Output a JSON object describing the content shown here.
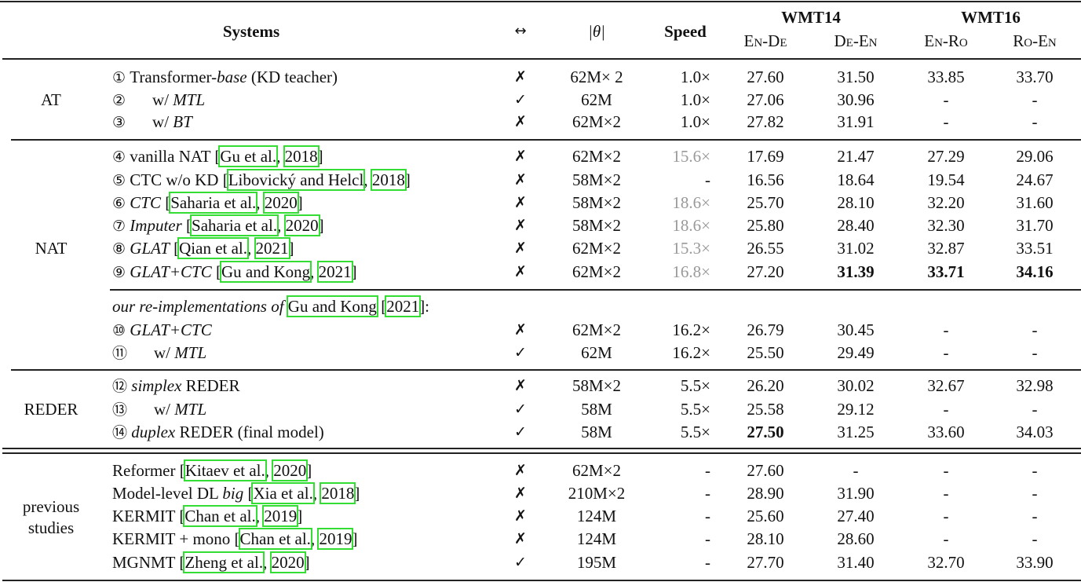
{
  "header": {
    "systems": "Systems",
    "bidirectional": "↔",
    "params": "|θ|",
    "speed": "Speed",
    "wmt14": "WMT14",
    "wmt16": "WMT16",
    "pairs": [
      "En-De",
      "De-En",
      "En-Ro",
      "Ro-En"
    ]
  },
  "groups": [
    {
      "label": [
        "AT"
      ]
    },
    {
      "label": [
        "NAT"
      ]
    },
    {
      "label": [
        "REDER"
      ]
    },
    {
      "label": [
        "previous",
        "studies"
      ]
    }
  ],
  "colors": {
    "citation_box": "#33dd33",
    "gray_speed": "#999999"
  },
  "rows": [
    {
      "num": "①",
      "indent": false,
      "name": [
        {
          "t": "Transformer-"
        },
        {
          "t": "base",
          "s": "it"
        },
        {
          "t": " (KD teacher)"
        }
      ],
      "mark": "✗",
      "params": "62M× 2",
      "speed": "1.0×",
      "scores": [
        "27.60",
        "31.50",
        "33.85",
        "33.70"
      ],
      "bold_cols": []
    },
    {
      "num": "②",
      "indent": true,
      "name": [
        {
          "t": "w/ "
        },
        {
          "t": "MTL",
          "s": "it"
        }
      ],
      "mark": "✓",
      "params": "62M",
      "speed": "1.0×",
      "scores": [
        "27.06",
        "30.96",
        "-",
        "-"
      ],
      "bold_cols": []
    },
    {
      "num": "③",
      "indent": true,
      "name": [
        {
          "t": "w/ "
        },
        {
          "t": "BT",
          "s": "it"
        }
      ],
      "mark": "✗",
      "params": "62M×2",
      "speed": "1.0×",
      "scores": [
        "27.82",
        "31.91",
        "-",
        "-"
      ],
      "bold_cols": []
    },
    {
      "num": "④",
      "indent": false,
      "name": [
        {
          "t": "vanilla NAT ["
        },
        {
          "t": "Gu et al.",
          "s": "cite"
        },
        {
          "t": ", "
        },
        {
          "t": "2018",
          "s": "cite"
        },
        {
          "t": "]"
        }
      ],
      "mark": "✗",
      "params": "62M×2",
      "speed": "15.6×",
      "speed_gray": true,
      "scores": [
        "17.69",
        "21.47",
        "27.29",
        "29.06"
      ],
      "bold_cols": []
    },
    {
      "num": "⑤",
      "indent": false,
      "name": [
        {
          "t": "CTC w/o KD ["
        },
        {
          "t": "Libovický and Helcl",
          "s": "cite"
        },
        {
          "t": ", "
        },
        {
          "t": "2018",
          "s": "cite"
        },
        {
          "t": "]"
        }
      ],
      "mark": "✗",
      "params": "58M×2",
      "speed": "-",
      "scores": [
        "16.56",
        "18.64",
        "19.54",
        "24.67"
      ],
      "bold_cols": []
    },
    {
      "num": "⑥",
      "indent": false,
      "name": [
        {
          "t": "CTC",
          "s": "it"
        },
        {
          "t": " ["
        },
        {
          "t": "Saharia et al.",
          "s": "cite"
        },
        {
          "t": ", "
        },
        {
          "t": "2020",
          "s": "cite"
        },
        {
          "t": "]"
        }
      ],
      "mark": "✗",
      "params": "58M×2",
      "speed": "18.6×",
      "speed_gray": true,
      "scores": [
        "25.70",
        "28.10",
        "32.20",
        "31.60"
      ],
      "bold_cols": []
    },
    {
      "num": "⑦",
      "indent": false,
      "name": [
        {
          "t": "Imputer",
          "s": "it"
        },
        {
          "t": " ["
        },
        {
          "t": "Saharia et al.",
          "s": "cite"
        },
        {
          "t": ", "
        },
        {
          "t": "2020",
          "s": "cite"
        },
        {
          "t": "]"
        }
      ],
      "mark": "✗",
      "params": "58M×2",
      "speed": "18.6×",
      "speed_gray": true,
      "scores": [
        "25.80",
        "28.40",
        "32.30",
        "31.70"
      ],
      "bold_cols": []
    },
    {
      "num": "⑧",
      "indent": false,
      "name": [
        {
          "t": "GLAT",
          "s": "it"
        },
        {
          "t": " ["
        },
        {
          "t": "Qian et al.",
          "s": "cite"
        },
        {
          "t": ", "
        },
        {
          "t": "2021",
          "s": "cite"
        },
        {
          "t": "]"
        }
      ],
      "mark": "✗",
      "params": "62M×2",
      "speed": "15.3×",
      "speed_gray": true,
      "scores": [
        "26.55",
        "31.02",
        "32.87",
        "33.51"
      ],
      "bold_cols": []
    },
    {
      "num": "⑨",
      "indent": false,
      "name": [
        {
          "t": "GLAT+CTC",
          "s": "it"
        },
        {
          "t": " ["
        },
        {
          "t": "Gu and Kong",
          "s": "cite"
        },
        {
          "t": ", "
        },
        {
          "t": "2021",
          "s": "cite"
        },
        {
          "t": "]"
        }
      ],
      "mark": "✗",
      "params": "62M×2",
      "speed": "16.8×",
      "speed_gray": true,
      "scores": [
        "27.20",
        "31.39",
        "33.71",
        "34.16"
      ],
      "bold_cols": [
        1,
        2,
        3
      ]
    },
    {
      "subheader": true,
      "name": [
        {
          "t": "our re-implementations of ",
          "s": "it"
        },
        {
          "t": "Gu and Kong",
          "s": "cite"
        },
        {
          "t": " ["
        },
        {
          "t": "2021",
          "s": "cite"
        },
        {
          "t": "]:"
        }
      ]
    },
    {
      "num": "⑩",
      "indent": false,
      "name": [
        {
          "t": "GLAT+CTC",
          "s": "it"
        }
      ],
      "mark": "✗",
      "params": "62M×2",
      "speed": "16.2×",
      "scores": [
        "26.79",
        "30.45",
        "-",
        "-"
      ],
      "bold_cols": []
    },
    {
      "num": "⑪",
      "indent": true,
      "name": [
        {
          "t": "w/ "
        },
        {
          "t": "MTL",
          "s": "it"
        }
      ],
      "mark": "✓",
      "params": "62M",
      "speed": "16.2×",
      "scores": [
        "25.50",
        "29.49",
        "-",
        "-"
      ],
      "bold_cols": []
    },
    {
      "num": "⑫",
      "indent": false,
      "name": [
        {
          "t": "simplex",
          "s": "it"
        },
        {
          "t": " REDER"
        }
      ],
      "mark": "✗",
      "params": "58M×2",
      "speed": "5.5×",
      "scores": [
        "26.20",
        "30.02",
        "32.67",
        "32.98"
      ],
      "bold_cols": []
    },
    {
      "num": "⑬",
      "indent": true,
      "name": [
        {
          "t": "w/ "
        },
        {
          "t": "MTL",
          "s": "it"
        }
      ],
      "mark": "✓",
      "params": "58M",
      "speed": "5.5×",
      "scores": [
        "25.58",
        "29.12",
        "-",
        "-"
      ],
      "bold_cols": []
    },
    {
      "num": "⑭",
      "indent": false,
      "name": [
        {
          "t": "duplex",
          "s": "it"
        },
        {
          "t": " REDER (final model)"
        }
      ],
      "mark": "✓",
      "params": "58M",
      "speed": "5.5×",
      "scores": [
        "27.50",
        "31.25",
        "33.60",
        "34.03"
      ],
      "bold_cols": [
        0
      ]
    },
    {
      "name": [
        {
          "t": "Reformer ["
        },
        {
          "t": "Kitaev et al.",
          "s": "cite"
        },
        {
          "t": ", "
        },
        {
          "t": "2020",
          "s": "cite"
        },
        {
          "t": "]"
        }
      ],
      "mark": "✗",
      "params": "62M×2",
      "speed": "-",
      "scores": [
        "27.60",
        "-",
        "-",
        "-"
      ],
      "bold_cols": []
    },
    {
      "name": [
        {
          "t": "Model-level DL "
        },
        {
          "t": "big",
          "s": "it"
        },
        {
          "t": " ["
        },
        {
          "t": "Xia et al.",
          "s": "cite"
        },
        {
          "t": ", "
        },
        {
          "t": "2018",
          "s": "cite"
        },
        {
          "t": "]"
        }
      ],
      "mark": "✗",
      "params": "210M×2",
      "speed": "-",
      "scores": [
        "28.90",
        "31.90",
        "-",
        "-"
      ],
      "bold_cols": []
    },
    {
      "name": [
        {
          "t": "KERMIT ["
        },
        {
          "t": "Chan et al.",
          "s": "cite"
        },
        {
          "t": ", "
        },
        {
          "t": "2019",
          "s": "cite"
        },
        {
          "t": "]"
        }
      ],
      "mark": "✗",
      "params": "124M",
      "speed": "-",
      "scores": [
        "25.60",
        "27.40",
        "-",
        "-"
      ],
      "bold_cols": []
    },
    {
      "name": [
        {
          "t": "KERMIT + mono ["
        },
        {
          "t": "Chan et al.",
          "s": "cite"
        },
        {
          "t": ", "
        },
        {
          "t": "2019",
          "s": "cite"
        },
        {
          "t": "]"
        }
      ],
      "mark": "✗",
      "params": "124M",
      "speed": "-",
      "scores": [
        "28.10",
        "28.60",
        "-",
        "-"
      ],
      "bold_cols": []
    },
    {
      "name": [
        {
          "t": "MGNMT ["
        },
        {
          "t": "Zheng et al.",
          "s": "cite"
        },
        {
          "t": ", "
        },
        {
          "t": "2020",
          "s": "cite"
        },
        {
          "t": "]"
        }
      ],
      "mark": "✓",
      "params": "195M",
      "speed": "-",
      "scores": [
        "27.70",
        "31.40",
        "32.70",
        "33.90"
      ],
      "bold_cols": []
    }
  ]
}
